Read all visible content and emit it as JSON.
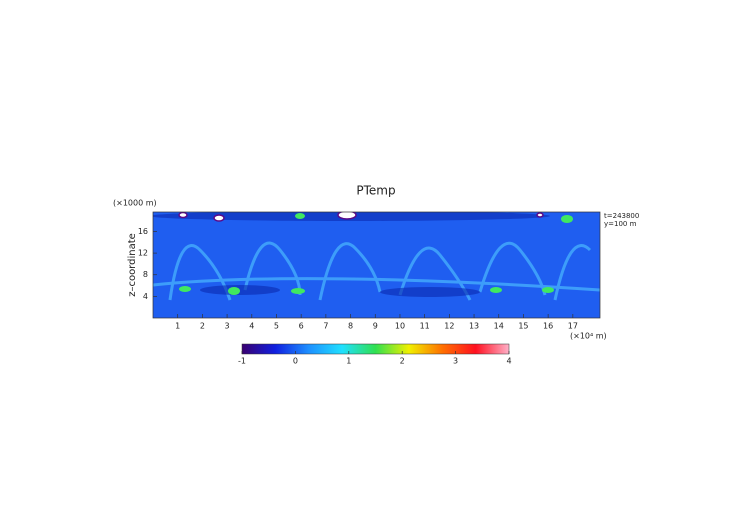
{
  "chart_data": {
    "type": "heatmap",
    "title": "PTemp",
    "xlabel": "(×10⁴ m)",
    "ylabel": "z–coordinate",
    "ylabel_unit": "(×1000 m)",
    "xlim": [
      0,
      18.1
    ],
    "xticks": [
      1,
      2,
      3,
      4,
      5,
      6,
      7,
      8,
      9,
      10,
      11,
      12,
      13,
      14,
      15,
      16,
      17
    ],
    "ylim": [
      0,
      19.6
    ],
    "yticks": [
      4,
      8,
      12,
      16
    ],
    "annotations": [
      "t=243800",
      "y=100 m"
    ],
    "clim": [
      -1,
      4
    ],
    "cticks": [
      -1,
      0,
      1,
      2,
      3,
      4
    ],
    "colormap": [
      "#3a0070",
      "#1020e0",
      "#1e90ff",
      "#20e0ff",
      "#30e050",
      "#f0f000",
      "#ff7000",
      "#ff1020",
      "#ffb0c8"
    ]
  }
}
